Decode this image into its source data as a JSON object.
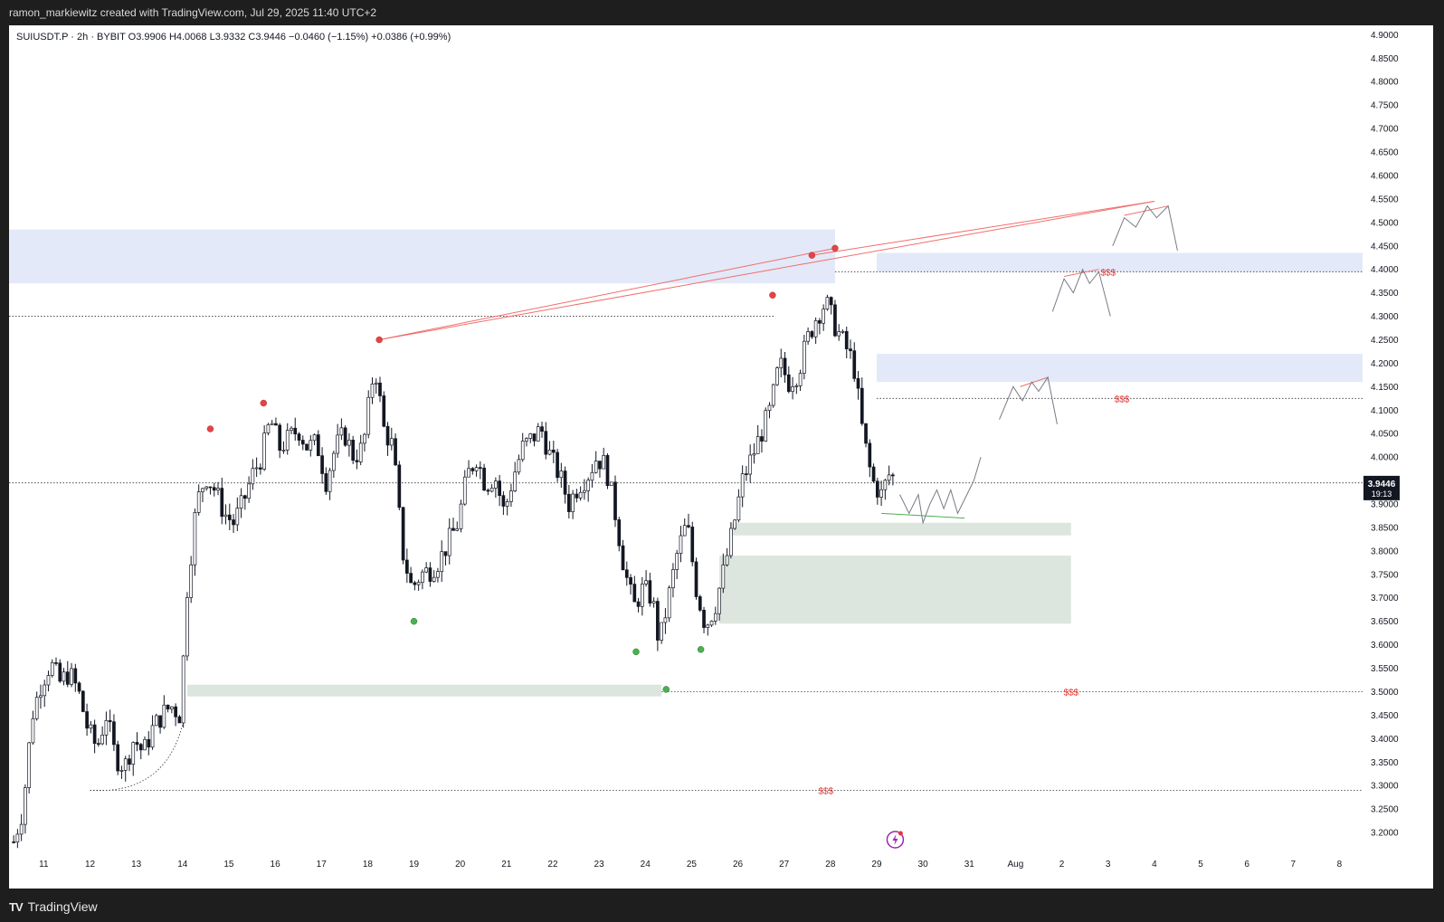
{
  "header": {
    "attribution": "ramon_markiewitz created with TradingView.com, Jul 29, 2025 11:40 UTC+2"
  },
  "legend": {
    "text": "SUIUSDT.P · 2h · BYBIT  O3.9906  H4.0068  L3.9332  C3.9446  −0.0460 (−1.15%)  +0.0386 (+0.99%)"
  },
  "footer": {
    "brand": "TradingView"
  },
  "chart_data": {
    "type": "candlestick",
    "symbol": "SUIUSDT.P",
    "interval": "2h",
    "exchange": "BYBIT",
    "ohlc": {
      "open": 3.9906,
      "high": 4.0068,
      "low": 3.9332,
      "close": 3.9446
    },
    "change": "−0.0460 (−1.15%)",
    "change2": "+0.0386 (+0.99%)",
    "ylim": [
      3.15,
      4.92
    ],
    "y_ticks": [
      "4.9000",
      "4.8500",
      "4.8000",
      "4.7500",
      "4.7000",
      "4.6500",
      "4.6000",
      "4.5500",
      "4.5000",
      "4.4500",
      "4.4000",
      "4.3500",
      "4.3000",
      "4.2500",
      "4.2000",
      "4.1500",
      "4.1000",
      "4.0500",
      "4.0000",
      "3.9500",
      "3.9000",
      "3.8500",
      "3.8000",
      "3.7500",
      "3.7000",
      "3.6500",
      "3.6000",
      "3.5500",
      "3.5000",
      "3.4500",
      "3.4000",
      "3.3500",
      "3.3000",
      "3.2500",
      "3.2000"
    ],
    "x_ticks": [
      {
        "label": "11",
        "day": 11
      },
      {
        "label": "12",
        "day": 12
      },
      {
        "label": "13",
        "day": 13
      },
      {
        "label": "14",
        "day": 14
      },
      {
        "label": "15",
        "day": 15
      },
      {
        "label": "16",
        "day": 16
      },
      {
        "label": "17",
        "day": 17
      },
      {
        "label": "18",
        "day": 18
      },
      {
        "label": "19",
        "day": 19
      },
      {
        "label": "20",
        "day": 20
      },
      {
        "label": "21",
        "day": 21
      },
      {
        "label": "22",
        "day": 22
      },
      {
        "label": "23",
        "day": 23
      },
      {
        "label": "24",
        "day": 24
      },
      {
        "label": "25",
        "day": 25
      },
      {
        "label": "26",
        "day": 26
      },
      {
        "label": "27",
        "day": 27
      },
      {
        "label": "28",
        "day": 28
      },
      {
        "label": "29",
        "day": 29
      },
      {
        "label": "30",
        "day": 30
      },
      {
        "label": "31",
        "day": 31
      },
      {
        "label": "Aug",
        "day": 32
      },
      {
        "label": "2",
        "day": 33
      },
      {
        "label": "3",
        "day": 34
      },
      {
        "label": "4",
        "day": 35
      },
      {
        "label": "5",
        "day": 36
      },
      {
        "label": "6",
        "day": 37
      },
      {
        "label": "7",
        "day": 38
      },
      {
        "label": "8",
        "day": 39
      }
    ],
    "x_range_days": [
      10.25,
      39.5
    ],
    "price_label": {
      "value": "3.9446",
      "countdown": "19:13",
      "color": "#131722"
    },
    "path_points": [
      [
        10.35,
        3.18
      ],
      [
        10.55,
        3.25
      ],
      [
        10.75,
        3.45
      ],
      [
        10.95,
        3.52
      ],
      [
        11.15,
        3.56
      ],
      [
        11.35,
        3.52
      ],
      [
        11.55,
        3.54
      ],
      [
        11.75,
        3.5
      ],
      [
        11.95,
        3.42
      ],
      [
        12.15,
        3.38
      ],
      [
        12.35,
        3.45
      ],
      [
        12.55,
        3.36
      ],
      [
        12.75,
        3.34
      ],
      [
        12.95,
        3.4
      ],
      [
        13.15,
        3.37
      ],
      [
        13.35,
        3.42
      ],
      [
        13.55,
        3.45
      ],
      [
        13.75,
        3.47
      ],
      [
        13.95,
        3.45
      ],
      [
        14.1,
        3.72
      ],
      [
        14.3,
        3.9
      ],
      [
        14.5,
        3.96
      ],
      [
        14.7,
        3.93
      ],
      [
        14.9,
        3.88
      ],
      [
        15.1,
        3.86
      ],
      [
        15.3,
        3.9
      ],
      [
        15.5,
        3.96
      ],
      [
        15.7,
        4.0
      ],
      [
        15.9,
        4.08
      ],
      [
        16.1,
        4.02
      ],
      [
        16.3,
        4.04
      ],
      [
        16.5,
        4.06
      ],
      [
        16.7,
        4.02
      ],
      [
        16.9,
        4.03
      ],
      [
        17.1,
        3.95
      ],
      [
        17.3,
        4.02
      ],
      [
        17.5,
        4.05
      ],
      [
        17.7,
        4.0
      ],
      [
        17.9,
        4.02
      ],
      [
        18.15,
        4.2
      ],
      [
        18.35,
        4.06
      ],
      [
        18.55,
        4.02
      ],
      [
        18.75,
        3.8
      ],
      [
        18.95,
        3.72
      ],
      [
        19.15,
        3.75
      ],
      [
        19.35,
        3.76
      ],
      [
        19.55,
        3.78
      ],
      [
        19.75,
        3.82
      ],
      [
        19.95,
        3.86
      ],
      [
        20.15,
        3.96
      ],
      [
        20.35,
        4.0
      ],
      [
        20.55,
        3.94
      ],
      [
        20.75,
        3.96
      ],
      [
        20.95,
        3.88
      ],
      [
        21.15,
        3.96
      ],
      [
        21.35,
        4.02
      ],
      [
        21.55,
        4.04
      ],
      [
        21.75,
        4.06
      ],
      [
        21.95,
        4.0
      ],
      [
        22.15,
        3.96
      ],
      [
        22.35,
        3.9
      ],
      [
        22.55,
        3.94
      ],
      [
        22.75,
        3.96
      ],
      [
        22.95,
        4.0
      ],
      [
        23.15,
        3.98
      ],
      [
        23.35,
        3.88
      ],
      [
        23.55,
        3.76
      ],
      [
        23.75,
        3.68
      ],
      [
        23.95,
        3.72
      ],
      [
        24.15,
        3.7
      ],
      [
        24.3,
        3.6
      ],
      [
        24.5,
        3.7
      ],
      [
        24.7,
        3.8
      ],
      [
        24.9,
        3.86
      ],
      [
        25.1,
        3.72
      ],
      [
        25.3,
        3.64
      ],
      [
        25.5,
        3.68
      ],
      [
        25.7,
        3.76
      ],
      [
        25.9,
        3.85
      ],
      [
        26.1,
        3.95
      ],
      [
        26.3,
        4.0
      ],
      [
        26.5,
        4.05
      ],
      [
        26.7,
        4.1
      ],
      [
        26.9,
        4.2
      ],
      [
        27.1,
        4.16
      ],
      [
        27.3,
        4.18
      ],
      [
        27.5,
        4.25
      ],
      [
        27.7,
        4.3
      ],
      [
        27.9,
        4.33
      ],
      [
        28.1,
        4.28
      ],
      [
        28.3,
        4.24
      ],
      [
        28.5,
        4.2
      ],
      [
        28.7,
        4.05
      ],
      [
        28.9,
        3.95
      ],
      [
        29.1,
        3.92
      ],
      [
        29.3,
        3.97
      ],
      [
        29.4,
        3.9446
      ]
    ],
    "zones": [
      {
        "type": "supply",
        "x0": 10.25,
        "x1": 28.1,
        "y0": 4.37,
        "y1": 4.485,
        "color": "#e3e9f8"
      },
      {
        "type": "supply",
        "x0": 29.0,
        "x1": 39.5,
        "y0": 4.395,
        "y1": 4.435,
        "color": "#e3e9f8"
      },
      {
        "type": "supply",
        "x0": 29.0,
        "x1": 39.5,
        "y0": 4.16,
        "y1": 4.22,
        "color": "#e3e9f8"
      },
      {
        "type": "demand",
        "x0": 25.85,
        "x1": 33.2,
        "y0": 3.833,
        "y1": 3.86,
        "color": "#dde6de"
      },
      {
        "type": "demand",
        "x0": 25.6,
        "x1": 33.2,
        "y0": 3.645,
        "y1": 3.79,
        "color": "#dde6de"
      },
      {
        "type": "demand",
        "x0": 14.1,
        "x1": 24.35,
        "y0": 3.49,
        "y1": 3.515,
        "color": "#dde6de"
      }
    ],
    "dotted_levels": [
      {
        "y": 4.3,
        "x0": 10.25,
        "x1": 26.8
      },
      {
        "y": 4.395,
        "x0": 28.1,
        "x1": 39.5
      },
      {
        "y": 4.125,
        "x0": 29.0,
        "x1": 39.5
      },
      {
        "y": 3.945,
        "x0": 10.25,
        "x1": 39.5
      },
      {
        "y": 3.5,
        "x0": 24.35,
        "x1": 39.5
      },
      {
        "y": 3.29,
        "x0": 12.0,
        "x1": 39.5
      }
    ],
    "liquidity_labels": [
      {
        "text": "$$$",
        "x": 34.0,
        "y": 4.395
      },
      {
        "text": "$$$",
        "x": 34.3,
        "y": 4.125
      },
      {
        "text": "$$$",
        "x": 33.2,
        "y": 3.5
      },
      {
        "text": "$$$",
        "x": 27.9,
        "y": 3.29
      }
    ],
    "swing_highs": [
      [
        14.6,
        4.06
      ],
      [
        15.75,
        4.115
      ],
      [
        18.25,
        4.25
      ],
      [
        26.75,
        4.345
      ],
      [
        27.6,
        4.43
      ],
      [
        28.1,
        4.445
      ]
    ],
    "swing_lows": [
      [
        19.0,
        3.65
      ],
      [
        23.8,
        3.585
      ],
      [
        25.2,
        3.59
      ],
      [
        24.45,
        3.505
      ]
    ],
    "projection_paths": [
      [
        [
          29.5,
          3.92
        ],
        [
          29.7,
          3.88
        ],
        [
          29.9,
          3.92
        ],
        [
          30.0,
          3.86
        ],
        [
          30.15,
          3.9
        ],
        [
          30.3,
          3.93
        ],
        [
          30.45,
          3.89
        ],
        [
          30.6,
          3.93
        ],
        [
          30.75,
          3.88
        ],
        [
          30.95,
          3.92
        ],
        [
          31.1,
          3.95
        ],
        [
          31.25,
          4.0
        ]
      ],
      [
        [
          31.65,
          4.08
        ],
        [
          31.95,
          4.15
        ],
        [
          32.15,
          4.12
        ],
        [
          32.35,
          4.16
        ],
        [
          32.5,
          4.14
        ],
        [
          32.7,
          4.17
        ],
        [
          32.9,
          4.07
        ]
      ],
      [
        [
          32.8,
          4.31
        ],
        [
          33.05,
          4.38
        ],
        [
          33.25,
          4.35
        ],
        [
          33.45,
          4.4
        ],
        [
          33.6,
          4.37
        ],
        [
          33.8,
          4.395
        ],
        [
          34.05,
          4.3
        ]
      ],
      [
        [
          34.1,
          4.45
        ],
        [
          34.35,
          4.51
        ],
        [
          34.6,
          4.49
        ],
        [
          34.85,
          4.535
        ],
        [
          35.05,
          4.51
        ],
        [
          35.3,
          4.535
        ],
        [
          35.5,
          4.44
        ]
      ]
    ],
    "red_trendlines": [
      {
        "from": [
          18.25,
          4.25
        ],
        "to": [
          35.0,
          4.545
        ]
      },
      {
        "from": [
          27.6,
          4.43
        ],
        "to": [
          35.0,
          4.545
        ]
      },
      {
        "from": [
          18.25,
          4.25
        ],
        "to": [
          28.1,
          4.445
        ]
      },
      {
        "from": [
          33.05,
          4.385
        ],
        "to": [
          33.8,
          4.4
        ]
      },
      {
        "from": [
          32.1,
          4.15
        ],
        "to": [
          32.7,
          4.17
        ]
      },
      {
        "from": [
          34.35,
          4.515
        ],
        "to": [
          35.3,
          4.535
        ]
      }
    ],
    "green_trendline": {
      "from": [
        29.1,
        3.88
      ],
      "to": [
        30.9,
        3.87
      ]
    },
    "curve": {
      "from": [
        12.0,
        3.29
      ],
      "to": [
        14.0,
        3.43
      ]
    }
  }
}
